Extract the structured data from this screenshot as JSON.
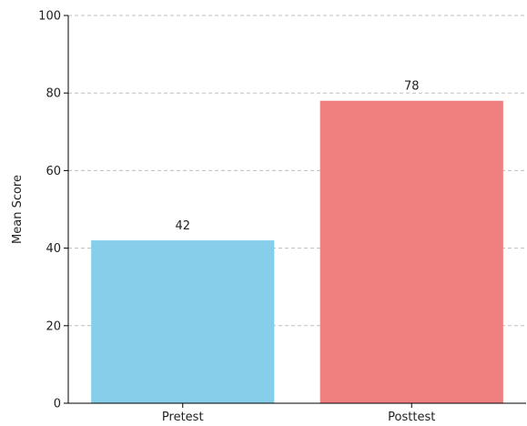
{
  "chart_data": {
    "type": "bar",
    "categories": [
      "Pretest",
      "Posttest"
    ],
    "values": [
      42,
      78
    ],
    "data_labels": [
      "42",
      "78"
    ],
    "colors": [
      "#87ceeb",
      "#f08080"
    ],
    "title": "",
    "xlabel": "",
    "ylabel": "Mean Score",
    "ylim": [
      0,
      100
    ],
    "yticks": [
      0,
      20,
      40,
      60,
      80,
      100
    ],
    "grid": "y-dashed",
    "legend": "none"
  }
}
